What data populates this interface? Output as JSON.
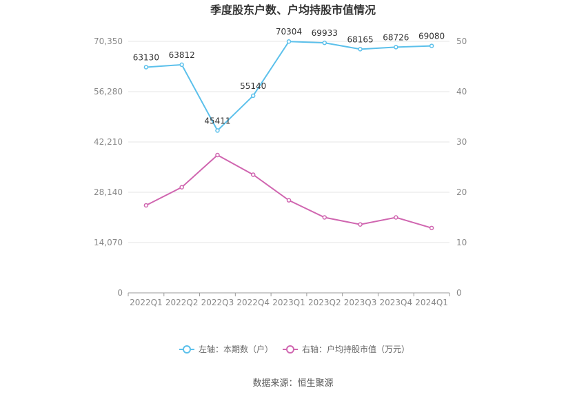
{
  "chart_data": {
    "type": "line",
    "title": "季度股东户数、户均持股市值情况",
    "categories": [
      "2022Q1",
      "2022Q2",
      "2022Q3",
      "2022Q4",
      "2023Q1",
      "2023Q2",
      "2023Q3",
      "2023Q4",
      "2024Q1"
    ],
    "left_axis": {
      "ylim": [
        0,
        70350
      ],
      "ticks": [
        "0",
        "14,070",
        "28,140",
        "42,210",
        "56,280",
        "70,350"
      ]
    },
    "right_axis": {
      "ylim": [
        0,
        50
      ],
      "ticks": [
        "0",
        "10",
        "20",
        "30",
        "40",
        "50"
      ]
    },
    "series": [
      {
        "name": "左轴：本期数（户）",
        "axis": "left",
        "color": "#5bc0eb",
        "values": [
          63130,
          63812,
          45411,
          55140,
          70304,
          69933,
          68165,
          68726,
          69080
        ],
        "labels": [
          "63130",
          "63812",
          "45411",
          "55140",
          "70304",
          "69933",
          "68165",
          "68726",
          "69080"
        ]
      },
      {
        "name": "右轴：户均持股市值（万元）",
        "axis": "right",
        "color": "#d066b0",
        "values": [
          17.4,
          21.0,
          27.4,
          23.5,
          18.4,
          15.0,
          13.6,
          15.0,
          12.9
        ]
      }
    ],
    "grid": true,
    "legend": "bottom-center"
  },
  "source": "数据来源：恒生聚源"
}
